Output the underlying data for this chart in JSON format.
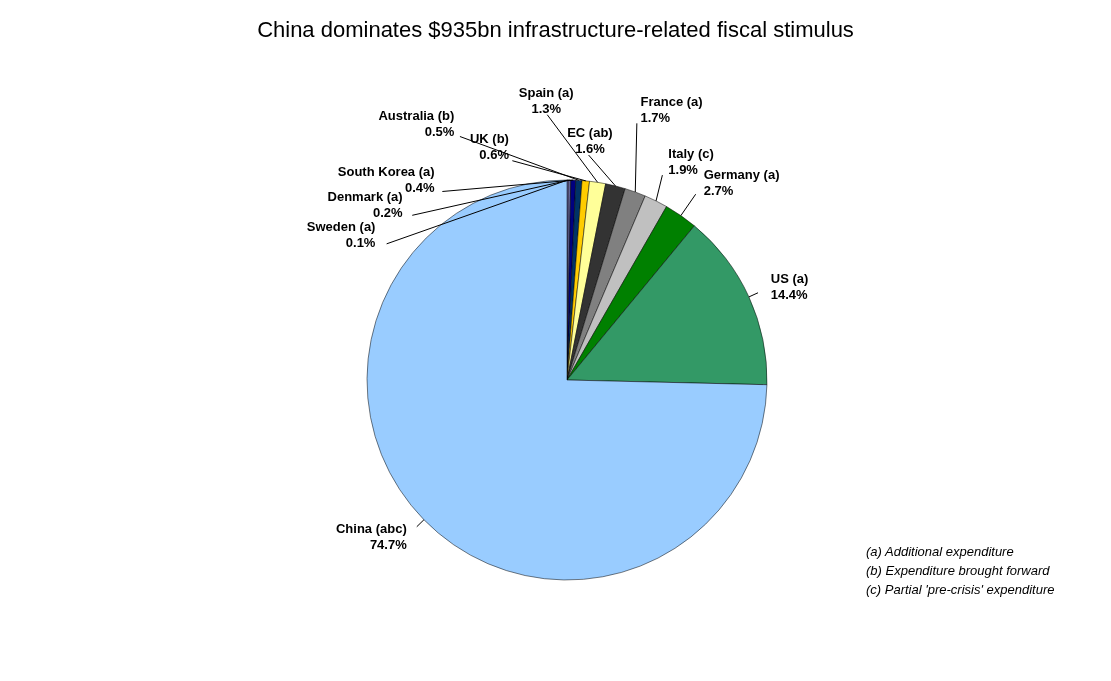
{
  "chart_data": {
    "type": "pie",
    "title": "China dominates $935bn infrastructure-related fiscal stimulus",
    "categories": [
      "Sweden (a)",
      "Denmark (a)",
      "South Korea (a)",
      "Australia (b)",
      "UK (b)",
      "Spain (a)",
      "EC (ab)",
      "France (a)",
      "Italy (c)",
      "Germany (a)",
      "US (a)",
      "China (abc)"
    ],
    "values": [
      0.1,
      0.2,
      0.4,
      0.5,
      0.6,
      1.3,
      1.6,
      1.7,
      1.9,
      2.7,
      14.4,
      74.7
    ],
    "value_labels": [
      "0.1%",
      "0.2%",
      "0.4%",
      "0.5%",
      "0.6%",
      "1.3%",
      "1.6%",
      "1.7%",
      "1.9%",
      "2.7%",
      "14.4%",
      "74.7%"
    ],
    "colors": [
      "#9999ff",
      "#666699",
      "#000080",
      "#003366",
      "#ffcc00",
      "#ffff99",
      "#333333",
      "#808080",
      "#c0c0c0",
      "#008000",
      "#339966",
      "#99ccff"
    ],
    "annotations": [
      "(a) Additional expenditure",
      "(b) Expenditure brought forward",
      "(c) Partial 'pre-crisis' expenditure"
    ]
  }
}
